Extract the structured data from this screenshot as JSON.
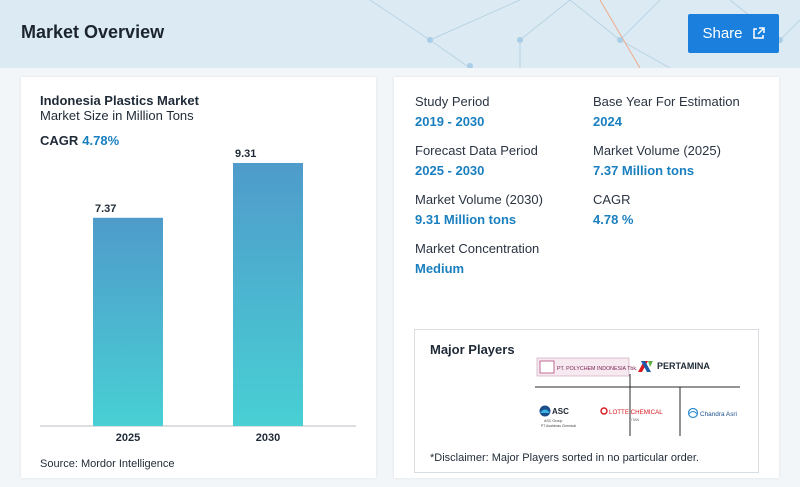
{
  "header": {
    "title": "Market Overview",
    "share_label": "Share"
  },
  "chart": {
    "title": "Indonesia Plastics Market",
    "subtitle": "Market Size in Million Tons",
    "cagr_label": "CAGR",
    "cagr_value": "4.78%",
    "source": "Source: Mordor Intelligence"
  },
  "chart_data": {
    "type": "bar",
    "categories": [
      "2025",
      "2030"
    ],
    "values": [
      7.37,
      9.31
    ],
    "title": "Indonesia Plastics Market",
    "ylabel": "Market Size in Million Tons",
    "ylim": [
      0,
      12
    ],
    "grid": false,
    "colors": {
      "bar_top": "#4f9bcb",
      "bar_bottom": "#48d0d4"
    }
  },
  "stats": [
    {
      "label": "Study Period",
      "value": "2019 - 2030"
    },
    {
      "label": "Base Year For Estimation",
      "value": "2024"
    },
    {
      "label": "Forecast Data Period",
      "value": "2025 - 2030"
    },
    {
      "label": "Market Volume (2025)",
      "value": "7.37 Million tons"
    },
    {
      "label": "Market Volume (2030)",
      "value": "9.31 Million tons"
    },
    {
      "label": "CAGR",
      "value": "4.78 %"
    },
    {
      "label": "Market Concentration",
      "value": "Medium"
    }
  ],
  "players": {
    "title": "Major Players",
    "disclaimer": "*Disclaimer: Major Players sorted in no particular order.",
    "logos": [
      {
        "name": "PT. POLYCHEM INDONESIA Tbk."
      },
      {
        "name": "PERTAMINA"
      },
      {
        "name": "ASC",
        "sub1": "ASC Group",
        "sub2": "PT Asahimas Chemical"
      },
      {
        "name": "LOTTE CHEMICAL",
        "sub1": "TITAN"
      },
      {
        "name": "Chandra Asri"
      }
    ]
  },
  "colors": {
    "accent": "#1a7fbf",
    "button": "#1b7fdd",
    "header_bg": "#dcebf3"
  }
}
